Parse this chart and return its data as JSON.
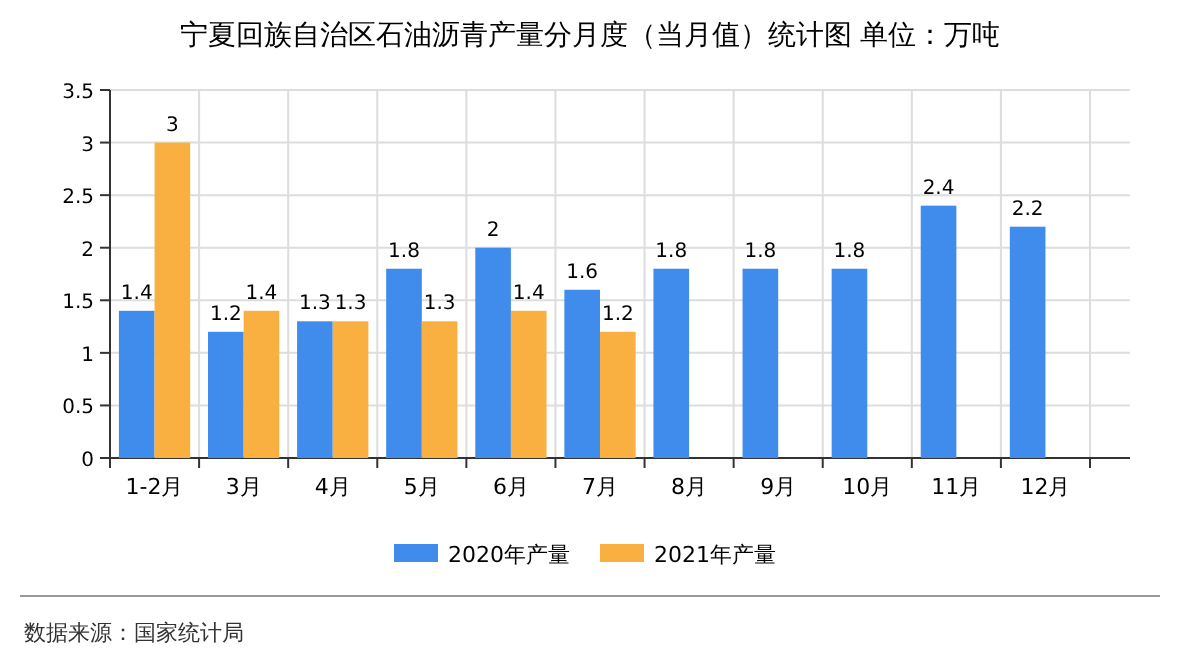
{
  "chart_data": {
    "type": "bar",
    "title": "宁夏回族自治区石油沥青产量分月度（当月值）统计图 单位：万吨",
    "categories": [
      "1-2月",
      "3月",
      "4月",
      "5月",
      "6月",
      "7月",
      "8月",
      "9月",
      "10月",
      "11月",
      "12月"
    ],
    "series": [
      {
        "name": "2020年产量",
        "color": "#3f8ced",
        "values": [
          1.4,
          1.2,
          1.3,
          1.8,
          2,
          1.6,
          1.8,
          1.8,
          1.8,
          2.4,
          2.2
        ]
      },
      {
        "name": "2021年产量",
        "color": "#f9b040",
        "values": [
          3,
          1.4,
          1.3,
          1.3,
          1.4,
          1.2,
          null,
          null,
          null,
          null,
          null
        ]
      }
    ],
    "ylim": [
      0,
      3.5
    ],
    "yticks": [
      0,
      0.5,
      1,
      1.5,
      2,
      2.5,
      3,
      3.5
    ],
    "grid": true,
    "data_labels": true,
    "legend": "bottom",
    "annotations": [
      "数据来源：国家统计局"
    ]
  }
}
